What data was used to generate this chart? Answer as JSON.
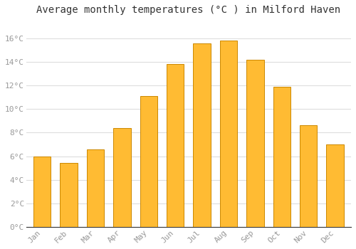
{
  "title": "Average monthly temperatures (°C ) in Milford Haven",
  "months": [
    "Jan",
    "Feb",
    "Mar",
    "Apr",
    "May",
    "Jun",
    "Jul",
    "Aug",
    "Sep",
    "Oct",
    "Nov",
    "Dec"
  ],
  "values": [
    6.0,
    5.4,
    6.6,
    8.4,
    11.1,
    13.8,
    15.6,
    15.8,
    14.2,
    11.9,
    8.6,
    7.0
  ],
  "bar_color": "#FFBB33",
  "bar_edge_color": "#CC8800",
  "background_color": "#FFFFFF",
  "plot_bg_color": "#FFFFFF",
  "grid_color": "#DDDDDD",
  "ytick_labels": [
    "0°C",
    "2°C",
    "4°C",
    "6°C",
    "8°C",
    "10°C",
    "12°C",
    "14°C",
    "16°C"
  ],
  "ytick_values": [
    0,
    2,
    4,
    6,
    8,
    10,
    12,
    14,
    16
  ],
  "ylim": [
    0,
    17.5
  ],
  "title_fontsize": 10,
  "tick_fontsize": 8,
  "tick_color": "#999999",
  "font_family": "monospace",
  "bar_width": 0.65
}
